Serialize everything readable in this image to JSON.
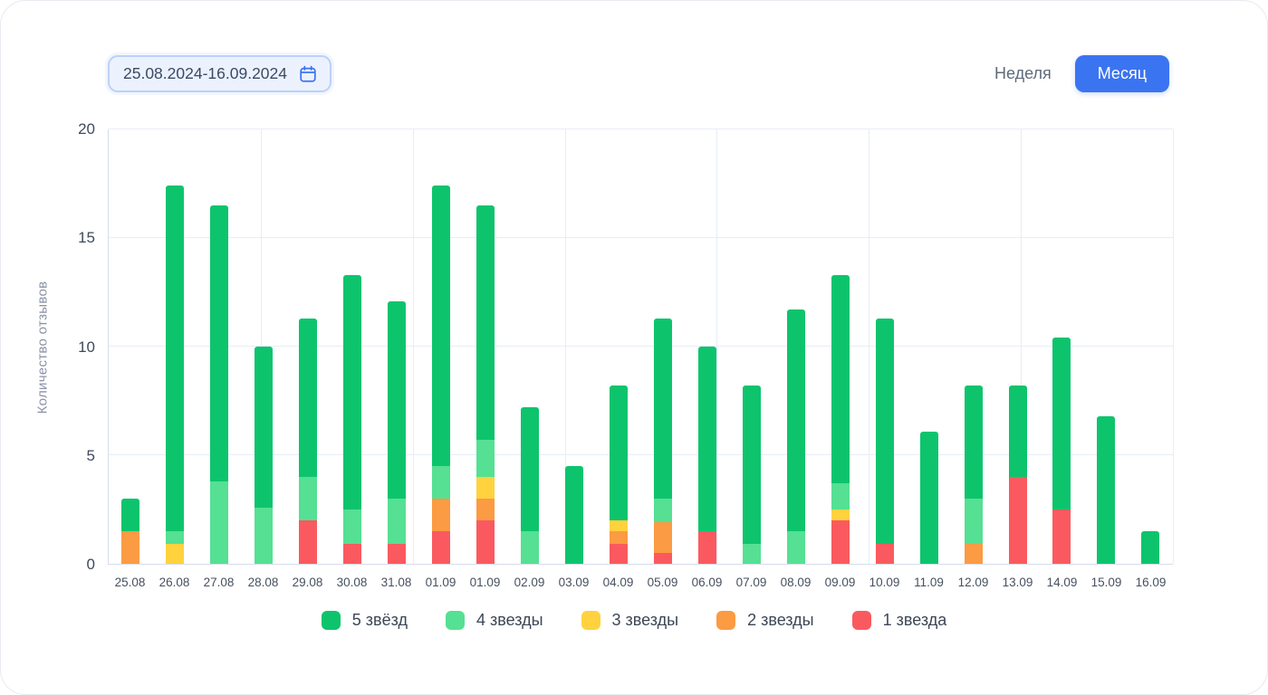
{
  "header": {
    "date_range": "25.08.2024-16.09.2024",
    "week_label": "Неделя",
    "month_label": "Месяц"
  },
  "colors": {
    "accent_blue": "#3B74F0",
    "pill_bg": "#ECF2FD",
    "pill_border": "#BCD1F8",
    "grid": "#E8EDF6",
    "star5_green": "#0DC46D",
    "star4_light_green": "#55E093",
    "star3_yellow": "#FFD23E",
    "star2_orange": "#FB9B43",
    "star1_red": "#FA5A5F"
  },
  "chart_data": {
    "type": "bar",
    "stacked": true,
    "title": "",
    "xlabel": "",
    "ylabel": "Количество отзывов",
    "ylim": [
      0,
      20
    ],
    "yticks": [
      0,
      5,
      10,
      15,
      20
    ],
    "grid": true,
    "grid_vertical_divisions": 7,
    "legend_position": "bottom",
    "categories": [
      "25.08",
      "26.08",
      "27.08",
      "28.08",
      "29.08",
      "30.08",
      "31.08",
      "01.09",
      "01.09",
      "02.09",
      "03.09",
      "04.09",
      "05.09",
      "06.09",
      "07.09",
      "08.09",
      "09.09",
      "10.09",
      "11.09",
      "12.09",
      "13.09",
      "14.09",
      "15.09",
      "16.09"
    ],
    "series": [
      {
        "name": "5 звёзд",
        "color": "#0DC46D",
        "values": [
          1.5,
          15.9,
          12.7,
          7.4,
          7.3,
          10.8,
          9.1,
          12.9,
          10.8,
          5.7,
          4.5,
          6.2,
          8.3,
          8.5,
          7.3,
          10.2,
          9.6,
          10.4,
          6.1,
          5.2,
          4.2,
          7.9,
          6.8,
          1.5
        ]
      },
      {
        "name": "4 звезды",
        "color": "#55E093",
        "values": [
          0,
          0.6,
          3.8,
          2.6,
          2.0,
          1.6,
          2.1,
          1.5,
          1.7,
          1.5,
          0,
          0,
          1.1,
          0,
          0.9,
          1.5,
          1.2,
          0,
          0,
          2.1,
          0,
          0,
          0,
          0
        ]
      },
      {
        "name": "3 звезды",
        "color": "#FFD23E",
        "values": [
          0,
          0.9,
          0,
          0,
          0,
          0,
          0,
          0,
          1.0,
          0,
          0,
          0.5,
          0,
          0,
          0,
          0,
          0.5,
          0,
          0,
          0,
          0,
          0,
          0,
          0
        ]
      },
      {
        "name": "2 звезды",
        "color": "#FB9B43",
        "values": [
          1.5,
          0,
          0,
          0,
          0,
          0,
          0,
          1.5,
          1.0,
          0,
          0,
          0.6,
          1.4,
          0,
          0,
          0,
          0,
          0,
          0,
          0.9,
          0,
          0,
          0,
          0
        ]
      },
      {
        "name": "1 звезда",
        "color": "#FA5A5F",
        "values": [
          0,
          0,
          0,
          0,
          2.0,
          0.9,
          0.9,
          1.5,
          2.0,
          0,
          0,
          0.9,
          0.5,
          1.5,
          0,
          0,
          2.0,
          0.9,
          0,
          0,
          4.0,
          2.5,
          0,
          0
        ]
      }
    ]
  }
}
